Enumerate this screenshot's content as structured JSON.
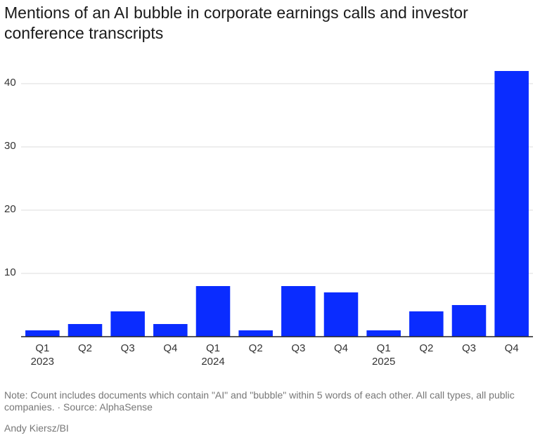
{
  "chart_data": {
    "type": "bar",
    "title": "Mentions of an AI bubble in corporate earnings calls and investor conference transcripts",
    "categories": [
      "Q1",
      "Q2",
      "Q3",
      "Q4",
      "Q1",
      "Q2",
      "Q3",
      "Q4",
      "Q1",
      "Q2",
      "Q3",
      "Q4"
    ],
    "year_labels": [
      "2023",
      null,
      null,
      null,
      "2024",
      null,
      null,
      null,
      "2025",
      null,
      null,
      null
    ],
    "values": [
      1,
      2,
      4,
      2,
      8,
      1,
      8,
      7,
      1,
      4,
      5,
      42
    ],
    "color": "#0a2cff",
    "ylim": [
      0,
      42
    ],
    "yticks": [
      10,
      20,
      30,
      40
    ],
    "grid": true,
    "note": "Note: Count includes documents which contain \"AI\" and \"bubble\" within 5 words of each other. All call types, all public companies.  · Source: AlphaSense",
    "credit": "Andy Kiersz/BI"
  }
}
